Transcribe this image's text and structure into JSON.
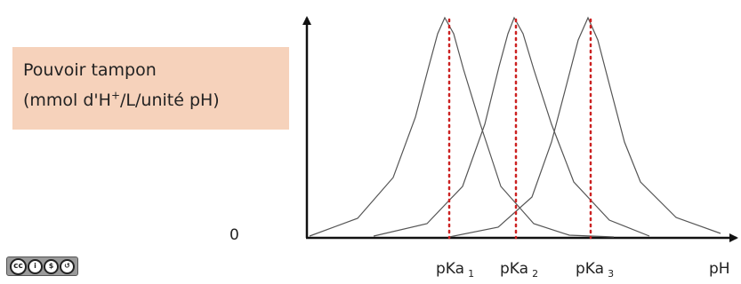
{
  "ylabel": {
    "line1": "Pouvoir tampon",
    "line2_prefix": "(mmol d'H",
    "line2_sup": "+",
    "line2_suffix": "/L/unité pH)"
  },
  "origin_label": "0",
  "xaxis_label": "pH",
  "peaks": [
    {
      "label": "pKa",
      "index": "1"
    },
    {
      "label": "pKa",
      "index": "2"
    },
    {
      "label": "pKa",
      "index": "3"
    }
  ],
  "colors": {
    "curve": "#555555",
    "axis": "#111111",
    "pka_line": "#cc2222",
    "label_box": "#f6d2bb"
  },
  "license_badge": {
    "icons": [
      "cc-icon",
      "by-icon",
      "nc-icon",
      "sa-icon"
    ]
  }
}
